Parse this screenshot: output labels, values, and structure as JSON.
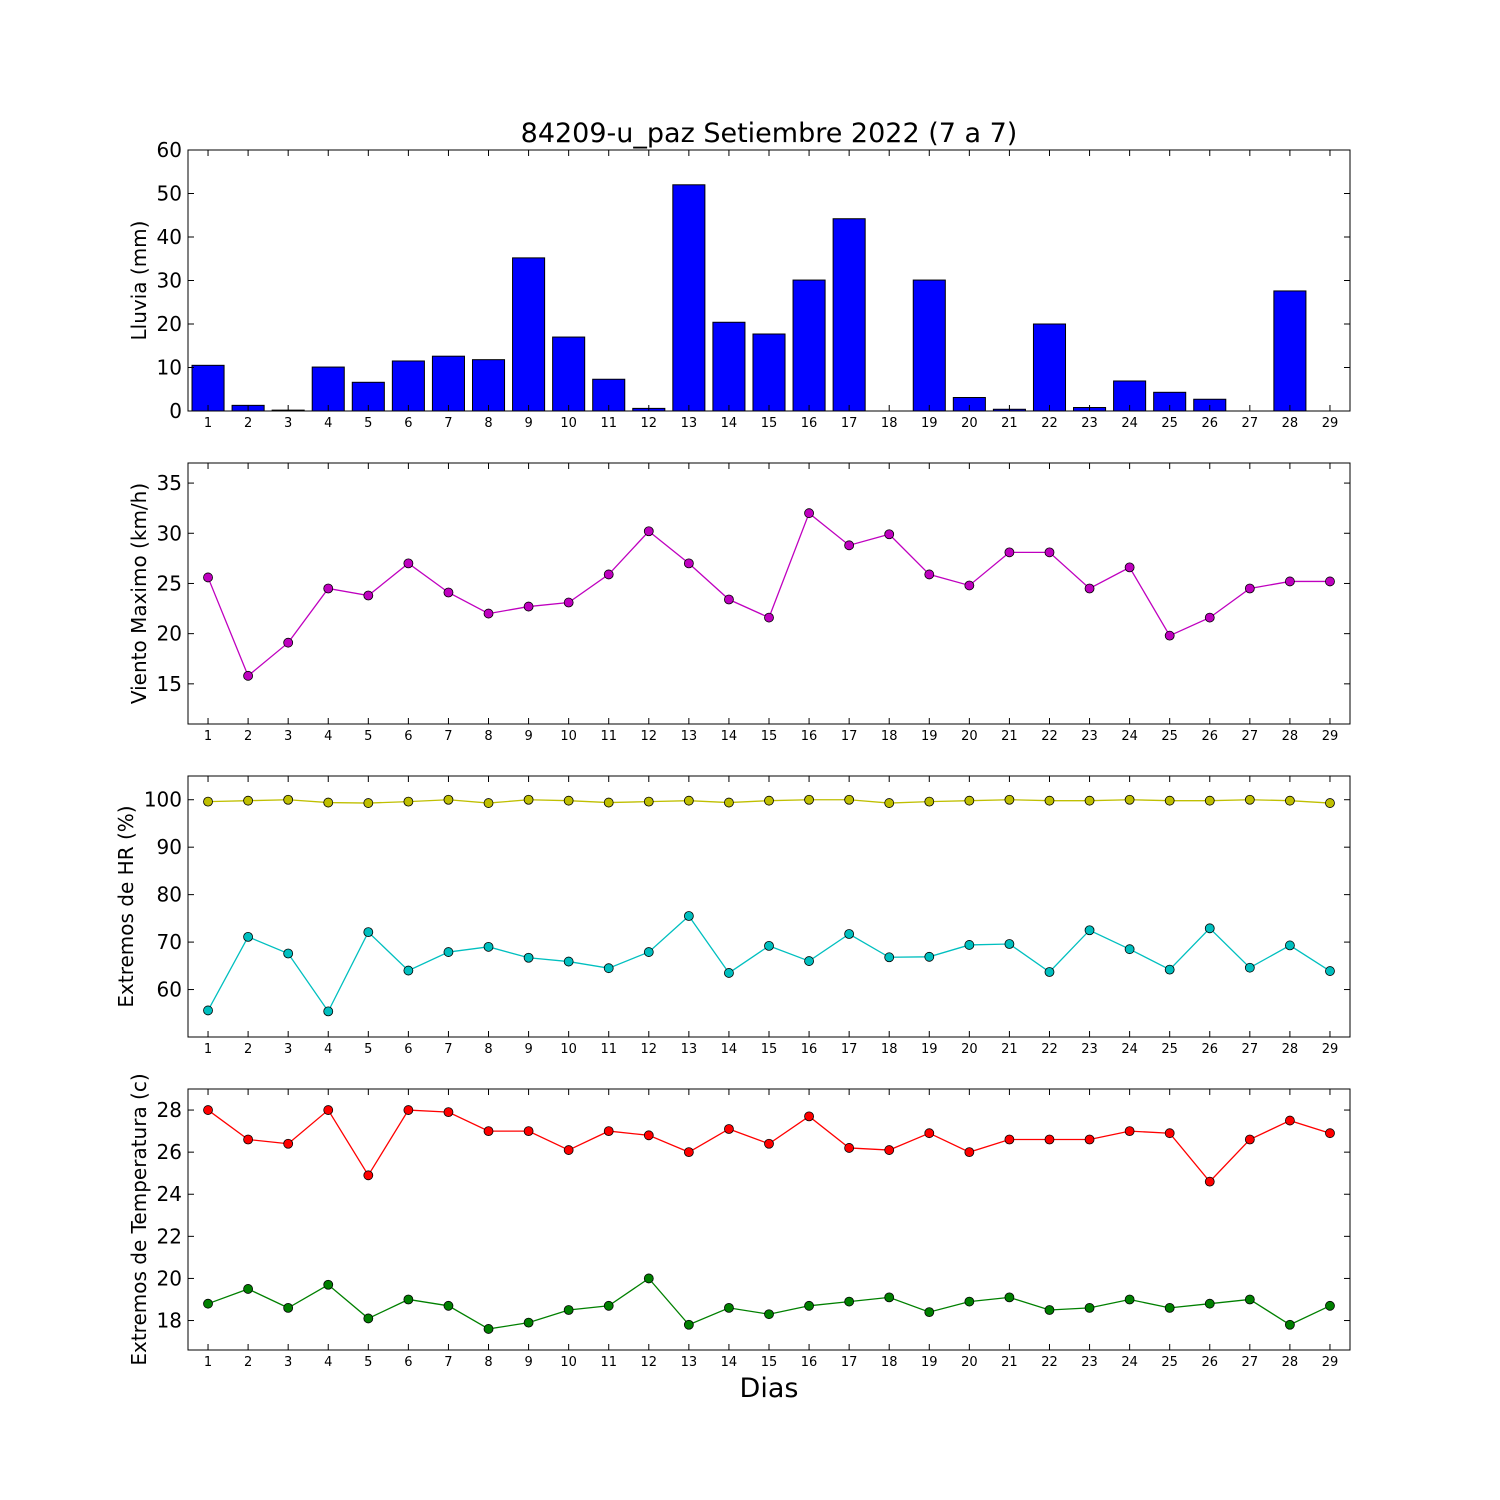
{
  "figure": {
    "title": "84209-u_paz Setiembre 2022  (7 a 7)",
    "xlabel": "Dias"
  },
  "chart_data": [
    {
      "type": "bar",
      "ylabel": "Lluvia (mm)",
      "categories": [
        "1",
        "2",
        "3",
        "4",
        "5",
        "6",
        "7",
        "8",
        "9",
        "10",
        "11",
        "12",
        "13",
        "14",
        "15",
        "16",
        "17",
        "18",
        "19",
        "20",
        "21",
        "22",
        "23",
        "24",
        "25",
        "26",
        "27",
        "28",
        "29"
      ],
      "xlim": [
        0.5,
        29.5
      ],
      "ylim": [
        0,
        60
      ],
      "yticks": [
        0,
        10,
        20,
        30,
        40,
        50,
        60
      ],
      "series": [
        {
          "color": "#0000ff",
          "values": [
            10.5,
            1.3,
            0.2,
            10.1,
            6.6,
            11.5,
            12.6,
            11.8,
            35.2,
            17.0,
            7.3,
            0.6,
            52.0,
            20.4,
            17.7,
            30.1,
            44.2,
            0,
            30.1,
            3.1,
            0.4,
            20.0,
            0.8,
            6.9,
            4.3,
            2.7,
            0,
            27.6,
            0
          ]
        }
      ]
    },
    {
      "type": "line",
      "ylabel": "Viento Maximo (km/h)",
      "categories": [
        "1",
        "2",
        "3",
        "4",
        "5",
        "6",
        "7",
        "8",
        "9",
        "10",
        "11",
        "12",
        "13",
        "14",
        "15",
        "16",
        "17",
        "18",
        "19",
        "20",
        "21",
        "22",
        "23",
        "24",
        "25",
        "26",
        "27",
        "28",
        "29"
      ],
      "xlim": [
        0.5,
        29.5
      ],
      "ylim": [
        11,
        37
      ],
      "yticks": [
        15,
        20,
        25,
        30,
        35
      ],
      "series": [
        {
          "color": "#bf00bf",
          "values": [
            25.6,
            15.8,
            19.1,
            24.5,
            23.8,
            27.0,
            24.1,
            22.0,
            22.7,
            23.1,
            25.9,
            30.2,
            27.0,
            23.4,
            21.6,
            32.0,
            28.8,
            29.9,
            25.9,
            24.8,
            28.1,
            28.1,
            24.5,
            26.6,
            19.8,
            21.6,
            24.5,
            25.2,
            25.2
          ]
        }
      ]
    },
    {
      "type": "line",
      "ylabel": "Extremos de HR (%)",
      "categories": [
        "1",
        "2",
        "3",
        "4",
        "5",
        "6",
        "7",
        "8",
        "9",
        "10",
        "11",
        "12",
        "13",
        "14",
        "15",
        "16",
        "17",
        "18",
        "19",
        "20",
        "21",
        "22",
        "23",
        "24",
        "25",
        "26",
        "27",
        "28",
        "29"
      ],
      "xlim": [
        0.5,
        29.5
      ],
      "ylim": [
        50,
        105
      ],
      "yticks": [
        60,
        70,
        80,
        90,
        100
      ],
      "series": [
        {
          "color": "#bfbf00",
          "values": [
            99.6,
            99.8,
            100.0,
            99.4,
            99.3,
            99.6,
            100.0,
            99.3,
            100.0,
            99.8,
            99.4,
            99.6,
            99.8,
            99.4,
            99.8,
            100.0,
            100.0,
            99.3,
            99.6,
            99.8,
            100.0,
            99.8,
            99.8,
            100.0,
            99.8,
            99.8,
            100.0,
            99.8,
            99.3
          ]
        },
        {
          "color": "#00bfbf",
          "values": [
            55.6,
            71.1,
            67.6,
            55.4,
            72.1,
            64.0,
            67.9,
            69.0,
            66.7,
            65.9,
            64.5,
            67.9,
            75.5,
            63.5,
            69.2,
            66.0,
            71.7,
            66.8,
            66.9,
            69.4,
            69.6,
            63.7,
            72.5,
            68.5,
            64.2,
            72.9,
            64.6,
            69.3,
            63.9
          ]
        }
      ]
    },
    {
      "type": "line",
      "ylabel": "Extremos de Temperatura (c)",
      "categories": [
        "1",
        "2",
        "3",
        "4",
        "5",
        "6",
        "7",
        "8",
        "9",
        "10",
        "11",
        "12",
        "13",
        "14",
        "15",
        "16",
        "17",
        "18",
        "19",
        "20",
        "21",
        "22",
        "23",
        "24",
        "25",
        "26",
        "27",
        "28",
        "29"
      ],
      "xlim": [
        0.5,
        29.5
      ],
      "ylim": [
        16.6,
        29.0
      ],
      "yticks": [
        18,
        20,
        22,
        24,
        26,
        28
      ],
      "series": [
        {
          "color": "#ff0000",
          "values": [
            28.0,
            26.6,
            26.4,
            28.0,
            24.9,
            28.0,
            27.9,
            27.0,
            27.0,
            26.1,
            27.0,
            26.8,
            26.0,
            27.1,
            26.4,
            27.7,
            26.2,
            26.1,
            26.9,
            26.0,
            26.6,
            26.6,
            26.6,
            27.0,
            26.9,
            24.6,
            26.6,
            27.5,
            26.9
          ]
        },
        {
          "color": "#008000",
          "values": [
            18.8,
            19.5,
            18.6,
            19.7,
            18.1,
            19.0,
            18.7,
            17.6,
            17.9,
            18.5,
            18.7,
            20.0,
            17.8,
            18.6,
            18.3,
            18.7,
            18.9,
            19.1,
            18.4,
            18.9,
            19.1,
            18.5,
            18.6,
            19.0,
            18.6,
            18.8,
            19.0,
            17.8,
            18.7
          ]
        }
      ]
    }
  ]
}
